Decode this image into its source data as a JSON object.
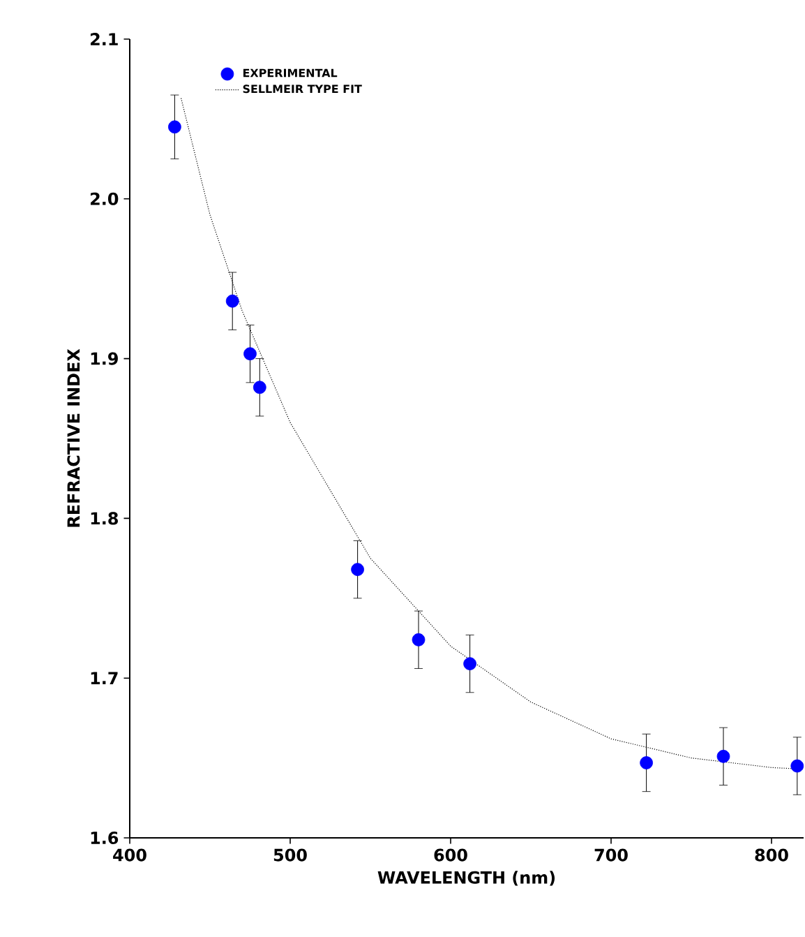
{
  "chart_data": {
    "type": "scatter",
    "xlabel": "WAVELENGTH (nm)",
    "ylabel": "REFRACTIVE INDEX",
    "xlim": [
      400,
      820
    ],
    "ylim": [
      1.6,
      2.1
    ],
    "xticks": [
      400,
      500,
      600,
      700,
      800
    ],
    "yticks": [
      1.6,
      1.7,
      1.8,
      1.9,
      {
        "value": 2.0,
        "label": "2.0"
      },
      2.1
    ],
    "grid": false,
    "legend": "top left",
    "series": [
      {
        "name": "EXPERIMENTAL",
        "marker": "circle",
        "color": "#0000ff",
        "x": [
          428,
          464,
          475,
          481,
          542,
          580,
          612,
          722,
          770,
          816
        ],
        "values": [
          2.045,
          1.936,
          1.903,
          1.882,
          1.768,
          1.724,
          1.709,
          1.647,
          1.651,
          1.645
        ],
        "errors": [
          0.02,
          0.018,
          0.018,
          0.018,
          0.018,
          0.018,
          0.018,
          0.018,
          0.018,
          0.018
        ]
      },
      {
        "name": "SELLMEIR TYPE FIT",
        "type": "line",
        "color": "#000000",
        "line_style": "dotted",
        "x": [
          432,
          450,
          470,
          500,
          550,
          600,
          650,
          700,
          750,
          800,
          820
        ],
        "values": [
          2.063,
          1.99,
          1.93,
          1.86,
          1.775,
          1.72,
          1.685,
          1.662,
          1.65,
          1.644,
          1.643
        ]
      }
    ]
  }
}
